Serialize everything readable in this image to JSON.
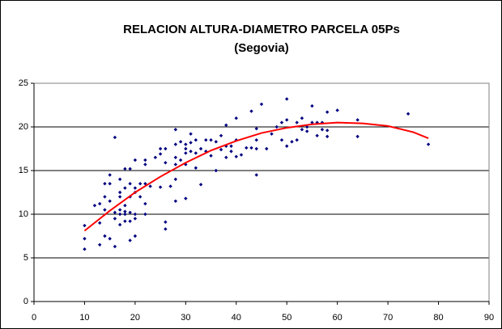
{
  "chart_data": {
    "type": "scatter",
    "title": "RELACION ALTURA-DIAMETRO PARCELA 05Ps",
    "subtitle": "(Segovia)",
    "color": "#000080",
    "x": [
      10,
      10,
      10,
      12,
      13,
      13,
      13,
      14,
      14,
      14,
      14,
      15,
      15,
      15,
      15,
      16,
      16,
      16,
      16,
      17,
      17,
      17,
      17,
      17,
      17,
      18,
      18,
      18,
      18,
      18,
      18,
      19,
      19,
      19,
      19,
      19,
      19,
      20,
      20,
      20,
      20,
      20,
      20,
      21,
      21,
      22,
      22,
      22,
      22,
      22,
      23,
      24,
      25,
      25,
      25,
      26,
      26,
      26,
      26,
      27,
      28,
      28,
      28,
      28,
      28,
      28,
      29,
      29,
      30,
      30,
      30,
      30,
      30,
      31,
      31,
      31,
      32,
      32,
      32,
      33,
      33,
      34,
      34,
      35,
      35,
      36,
      36,
      37,
      37,
      38,
      38,
      38,
      39,
      39,
      40,
      40,
      40,
      41,
      42,
      43,
      43,
      44,
      44,
      44,
      44,
      45,
      46,
      47,
      48,
      49,
      49,
      50,
      50,
      50,
      51,
      52,
      52,
      53,
      53,
      54,
      54,
      55,
      55,
      56,
      56,
      57,
      57,
      58,
      58,
      58,
      60,
      64,
      64,
      74,
      78
    ],
    "values": [
      6,
      7.2,
      8.7,
      11,
      6.5,
      9,
      11.2,
      7.5,
      10.5,
      12,
      13.5,
      7.2,
      11.5,
      13.5,
      14.5,
      6.3,
      9.5,
      10.2,
      18.8,
      8.8,
      10,
      10.5,
      12,
      12.5,
      14,
      9.2,
      10,
      10.3,
      11,
      13,
      15.2,
      7,
      9.2,
      10.2,
      12,
      13.5,
      15.2,
      7.5,
      9.5,
      10,
      12.5,
      13,
      16.2,
      12,
      13.5,
      10,
      11.2,
      13.5,
      15.7,
      16.2,
      13.2,
      16.5,
      13.1,
      16.9,
      17.5,
      8.3,
      9.1,
      15.9,
      17.5,
      13.2,
      11.5,
      14,
      15.7,
      16.5,
      18,
      19.7,
      16.2,
      18.3,
      11.8,
      15.7,
      17,
      17.5,
      18,
      17.2,
      18.2,
      19.2,
      15.3,
      17,
      18.5,
      13.4,
      17.5,
      17.2,
      18.5,
      16.7,
      18.5,
      15,
      18.3,
      17.4,
      19,
      16.5,
      17.8,
      20.2,
      17.2,
      17.8,
      16.6,
      18.5,
      21,
      16.8,
      17.6,
      21.8,
      17.6,
      14.5,
      17.5,
      18.5,
      19.8,
      22.6,
      17.5,
      19.2,
      20,
      20.5,
      18.5,
      23.2,
      17.8,
      20.8,
      18.3,
      18.5,
      20.5,
      19.7,
      21,
      20,
      19.5,
      20.5,
      22.4,
      19,
      20.5,
      20.5,
      19.7,
      18.9,
      21.7,
      19.6,
      21.9,
      20.8,
      18.9,
      21.5,
      18
    ],
    "trendline": {
      "color": "#ff0000",
      "x": [
        10,
        15,
        20,
        25,
        30,
        35,
        40,
        45,
        50,
        55,
        60,
        65,
        70,
        75,
        78
      ],
      "values": [
        8.1,
        10.4,
        12.5,
        14.3,
        15.9,
        17.3,
        18.4,
        19.3,
        19.9,
        20.3,
        20.5,
        20.4,
        20.1,
        19.4,
        18.7
      ]
    },
    "xlim": [
      0,
      90
    ],
    "xticks": [
      0,
      10,
      20,
      30,
      40,
      50,
      60,
      70,
      80,
      90
    ],
    "ylim": [
      0,
      25
    ],
    "yticks": [
      0,
      5,
      10,
      15,
      20,
      25
    ],
    "grid": true
  }
}
